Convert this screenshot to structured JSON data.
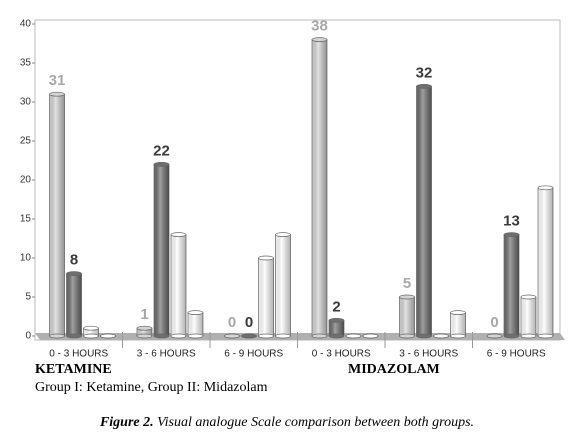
{
  "chart_data": {
    "type": "bar",
    "categories": [
      "0 - 3 HOURS",
      "3 - 6 HOURS",
      "6 - 9 HOURS",
      "0 - 3 HOURS",
      "3 - 6 HOURS",
      "6 - 9 HOURS"
    ],
    "series": [
      {
        "color": "#d4d4d4",
        "label_color": "#a8a8a8",
        "show_labels": true,
        "values": [
          31,
          1,
          0,
          38,
          5,
          0
        ]
      },
      {
        "color": "#6e6e6e",
        "label_color": "#3a3a3a",
        "show_labels": true,
        "values": [
          8,
          22,
          0,
          2,
          32,
          13
        ]
      },
      {
        "color": "#ffffff",
        "show_labels": false,
        "values": [
          1,
          13,
          10,
          0,
          0,
          5
        ]
      },
      {
        "color": "#ffffff",
        "show_labels": false,
        "values": [
          0,
          3,
          13,
          0,
          3,
          19
        ]
      }
    ],
    "groups": [
      "KETAMINE",
      "MIDAZOLAM"
    ],
    "note": "Group I: Ketamine, Group II: Midazolam",
    "caption": {
      "label": "Figure  2.",
      "text": "Visual analogue Scale comparison between both groups."
    },
    "ylim": [
      0,
      40
    ],
    "yticks": [
      0,
      5,
      10,
      15,
      20,
      25,
      30,
      35,
      40
    ]
  }
}
